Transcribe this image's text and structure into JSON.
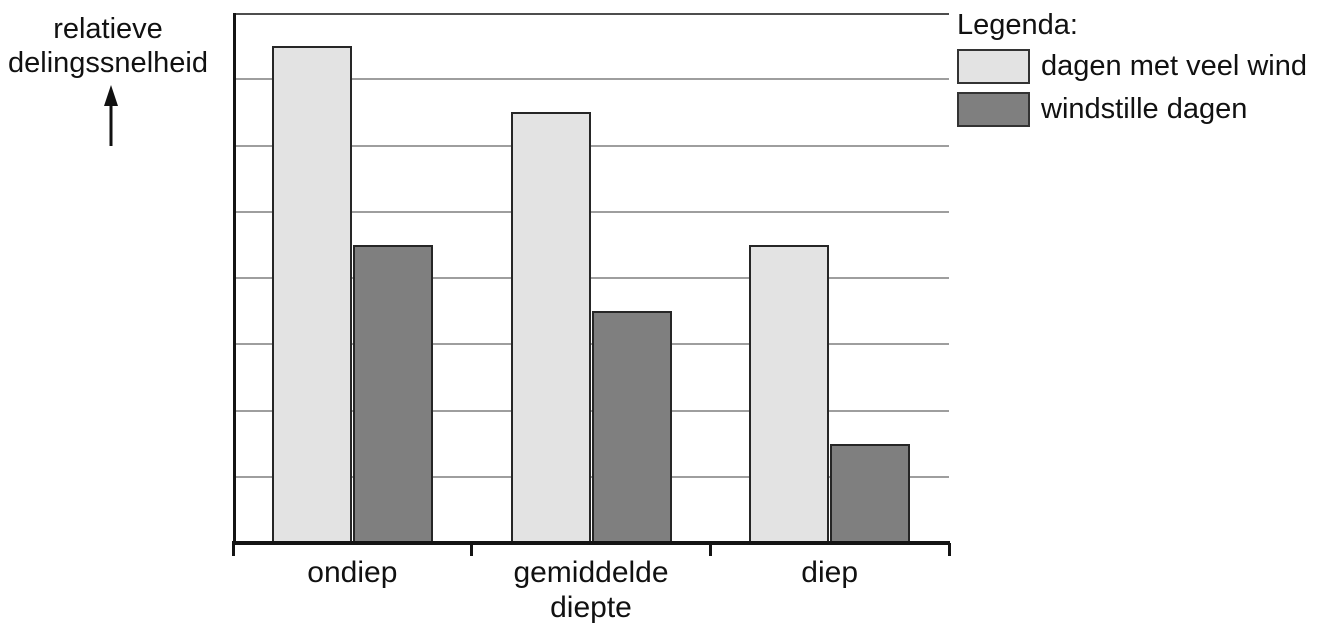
{
  "y_axis": {
    "label_line1": "relatieve",
    "label_line2": "delingssnelheid"
  },
  "legend": {
    "title": "Legenda:",
    "items": [
      {
        "label": "dagen met veel wind",
        "color": "#e3e3e3"
      },
      {
        "label": "windstille dagen",
        "color": "#7f7f7f"
      }
    ]
  },
  "chart_data": {
    "type": "bar",
    "title": "",
    "y_axis_label": "relatieve delingssnelheid",
    "x_axis_label": "",
    "categories": [
      "ondiep",
      "gemiddelde diepte",
      "diep"
    ],
    "category_label_lines": [
      [
        "ondiep"
      ],
      [
        "gemiddelde",
        "diepte"
      ],
      [
        "diep"
      ]
    ],
    "category_slugs": [
      "ondiep",
      "gemiddelde-diepte",
      "diep"
    ],
    "series": [
      {
        "name": "dagen met veel wind",
        "slug": "veel-wind",
        "color": "#e3e3e3",
        "values": [
          7.5,
          6.5,
          4.5
        ]
      },
      {
        "name": "windstille dagen",
        "slug": "windstille-dagen",
        "color": "#7f7f7f",
        "values": [
          4.5,
          3.5,
          1.5
        ]
      }
    ],
    "ylim": [
      0,
      8
    ],
    "gridline_interval": 1,
    "grid": true,
    "y_tick_labels_visible": false,
    "legend_position": "top-right",
    "colors": {
      "bar_outline": "#262626",
      "gridline": "#9e9e9e",
      "top_border": "#4d4d4d",
      "axis": "#141414",
      "text": "#111111",
      "background": "#ffffff"
    }
  }
}
